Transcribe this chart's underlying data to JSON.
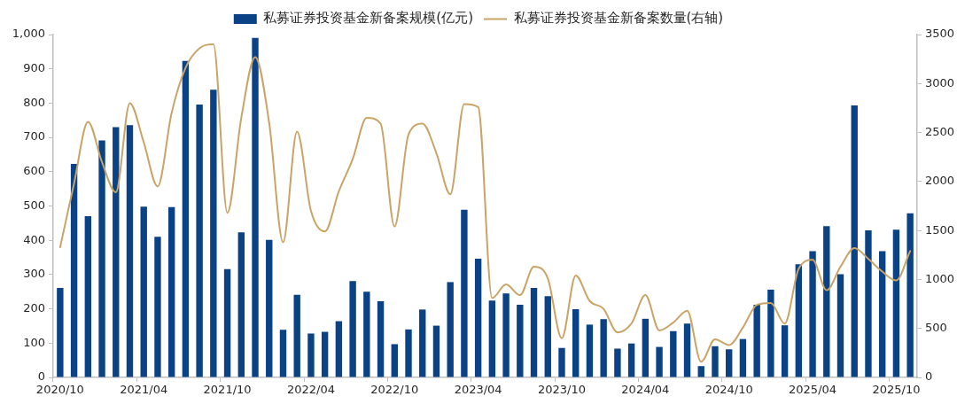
{
  "chart_data": {
    "type": "bar",
    "categories": [
      "2020/10",
      null,
      null,
      null,
      null,
      null,
      "2021/04",
      null,
      null,
      null,
      null,
      null,
      "2021/10",
      null,
      null,
      null,
      null,
      null,
      "2022/04",
      null,
      null,
      null,
      null,
      null,
      "2022/10",
      null,
      null,
      null,
      null,
      null,
      "2023/04",
      null,
      null,
      null,
      null,
      null,
      "2023/10",
      null,
      null,
      null,
      null,
      null,
      "2024/04",
      null,
      null,
      null,
      null,
      null,
      "2024/10",
      null,
      null,
      null,
      null,
      null,
      "2025/04",
      null,
      null,
      null,
      null,
      null,
      "2025/10",
      null
    ],
    "series": [
      {
        "name": "私募证券投资基金新备案规模(亿元)",
        "color": "#0b4285",
        "values": [
          261,
          623,
          470,
          691,
          730,
          736,
          498,
          410,
          497,
          923,
          796,
          839,
          316,
          423,
          990,
          401,
          139,
          241,
          128,
          133,
          164,
          281,
          250,
          222,
          97,
          140,
          198,
          151,
          278,
          489,
          346,
          224,
          245,
          212,
          261,
          237,
          86,
          199,
          154,
          170,
          84,
          99,
          171,
          89,
          135,
          157,
          33,
          91,
          82,
          112,
          212,
          256,
          152,
          330,
          368,
          441,
          301,
          793,
          429,
          368,
          431,
          479
        ]
      },
      {
        "name": "私募证券投资基金新备案数量(右轴)",
        "type": "line",
        "axis": "y2",
        "color": "#c9a467",
        "values": [
          1330,
          1980,
          2610,
          2200,
          1890,
          2800,
          2400,
          1950,
          2700,
          3160,
          3360,
          3400,
          1680,
          2650,
          3270,
          2600,
          1380,
          2510,
          1700,
          1490,
          1900,
          2230,
          2650,
          2590,
          1540,
          2480,
          2590,
          2290,
          1870,
          2790,
          2760,
          810,
          950,
          840,
          1130,
          1010,
          400,
          1040,
          780,
          700,
          460,
          550,
          840,
          480,
          560,
          680,
          160,
          390,
          330,
          510,
          740,
          760,
          550,
          1110,
          1200,
          890,
          1130,
          1320,
          1210,
          1080,
          990,
          1290
        ]
      }
    ],
    "ylim": [
      0,
      1000
    ],
    "yticks": [
      0,
      100,
      200,
      300,
      400,
      500,
      600,
      700,
      800,
      900,
      {
        "value": 1000,
        "label": "1,000"
      }
    ],
    "y2lim": [
      0,
      3500
    ],
    "y2ticks": [
      0,
      500,
      1000,
      1500,
      2000,
      2500,
      3000,
      3500
    ],
    "legend": "top"
  }
}
